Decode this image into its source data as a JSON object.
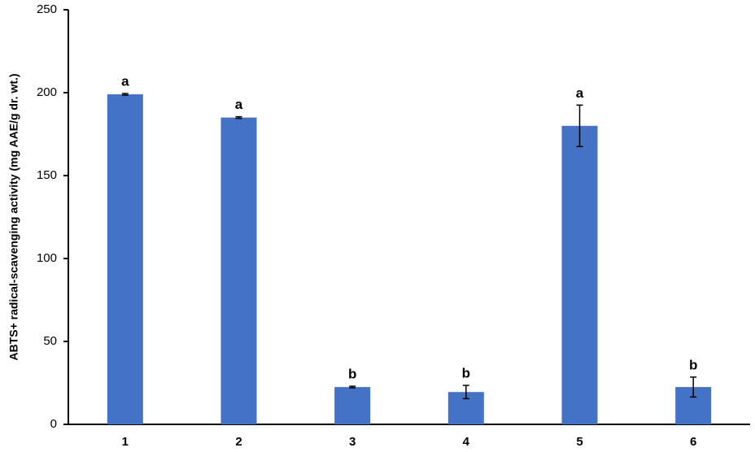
{
  "chart_data": {
    "type": "bar",
    "y_label": "ABTS+ radical-scavenging activity  (mg AAE/g dr. wt.)",
    "categories": [
      "1",
      "2",
      "3",
      "4",
      "5",
      "6"
    ],
    "values": [
      199,
      185,
      22.5,
      19.5,
      180,
      22.5
    ],
    "errors": [
      0.5,
      0.5,
      0.5,
      4,
      12.5,
      6
    ],
    "annotations": [
      "a",
      "a",
      "b",
      "b",
      "a",
      "b"
    ],
    "color": "#4472c4",
    "ylim": [
      0,
      250
    ],
    "yticks": [
      0,
      50,
      100,
      150,
      200,
      250
    ],
    "grid": false
  }
}
